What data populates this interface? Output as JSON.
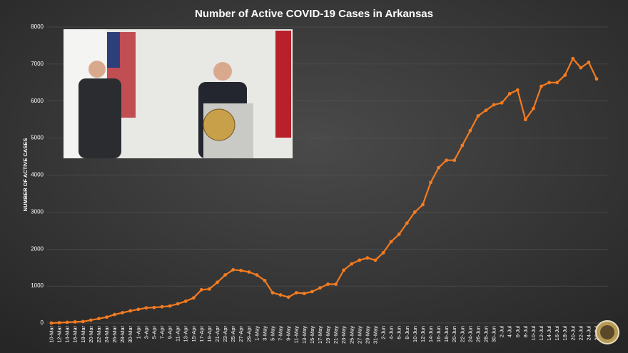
{
  "chart_data": {
    "type": "line",
    "title": "Number of Active COVID-19 Cases in Arkansas",
    "ylabel": "NUMBER OF ACTIVE CASES",
    "color": "#f47b20",
    "grid": true,
    "ylim": [
      0,
      8000
    ],
    "yticks": [
      0,
      1000,
      2000,
      3000,
      4000,
      5000,
      6000,
      7000,
      8000
    ],
    "categories": [
      "10-Mar",
      "12-Mar",
      "14-Mar",
      "16-Mar",
      "18-Mar",
      "20-Mar",
      "22-Mar",
      "24-Mar",
      "26-Mar",
      "28-Mar",
      "30-Mar",
      "1-Apr",
      "3-Apr",
      "5-Apr",
      "7-Apr",
      "9-Apr",
      "11-Apr",
      "13-Apr",
      "15-Apr",
      "17-Apr",
      "19-Apr",
      "21-Apr",
      "23-Apr",
      "25-Apr",
      "27-Apr",
      "29-Apr",
      "1-May",
      "3-May",
      "5-May",
      "7-May",
      "9-May",
      "11-May",
      "13-May",
      "15-May",
      "17-May",
      "19-May",
      "21-May",
      "23-May",
      "25-May",
      "27-May",
      "29-May",
      "31-May",
      "2-Jun",
      "4-Jun",
      "6-Jun",
      "8-Jun",
      "10-Jun",
      "12-Jun",
      "14-Jun",
      "16-Jun",
      "18-Jun",
      "20-Jun",
      "22-Jun",
      "24-Jun",
      "26-Jun",
      "28-Jun",
      "30-Jun",
      "2-Jul",
      "4-Jul",
      "6-Jul",
      "8-Jul",
      "10-Jul",
      "12-Jul",
      "14-Jul",
      "16-Jul",
      "18-Jul",
      "20-Jul",
      "22-Jul",
      "24-Jul",
      "26-Jul"
    ],
    "values": [
      0,
      10,
      20,
      30,
      40,
      80,
      120,
      160,
      230,
      280,
      330,
      370,
      410,
      420,
      440,
      460,
      520,
      590,
      680,
      900,
      920,
      1100,
      1300,
      1440,
      1420,
      1380,
      1300,
      1150,
      820,
      760,
      700,
      820,
      800,
      850,
      950,
      1050,
      1050,
      1430,
      1600,
      1700,
      1760,
      1700,
      1900,
      2200,
      2400,
      2700,
      3000,
      3200,
      3800,
      4200,
      4400,
      4400,
      4800,
      5200,
      5600,
      5750,
      5900,
      5950,
      6200,
      6300,
      5500,
      5800,
      6400,
      6500,
      6500,
      6700,
      7150,
      6900,
      7050,
      6600
    ]
  }
}
